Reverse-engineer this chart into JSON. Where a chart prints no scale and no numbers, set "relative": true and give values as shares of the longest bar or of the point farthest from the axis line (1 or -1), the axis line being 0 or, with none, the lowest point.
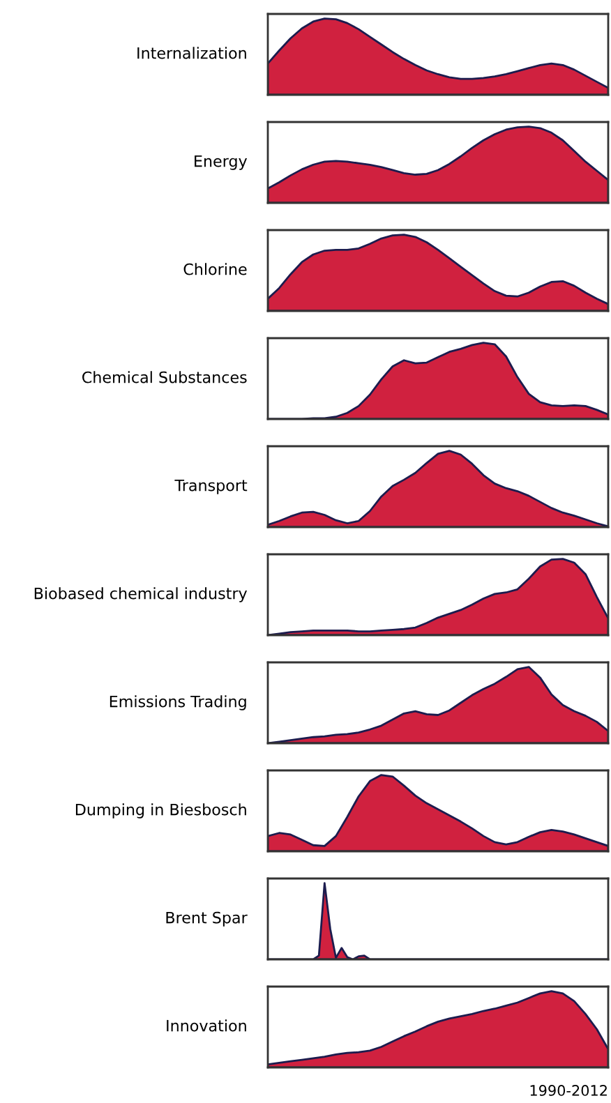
{
  "chart_data": [
    {
      "type": "area",
      "title": "Internalization",
      "relative": true,
      "color": "#d0213f",
      "categories": [
        null,
        null,
        null,
        null,
        null,
        null,
        null,
        null,
        null,
        null,
        null,
        null,
        null,
        null,
        null,
        null,
        null,
        null,
        null,
        null,
        null,
        null,
        null,
        null,
        null,
        null,
        null,
        null,
        null,
        null,
        null
      ],
      "values": [
        0.41,
        0.58,
        0.74,
        0.87,
        0.96,
        1.0,
        0.99,
        0.94,
        0.86,
        0.76,
        0.66,
        0.56,
        0.47,
        0.39,
        0.32,
        0.27,
        0.23,
        0.21,
        0.21,
        0.22,
        0.24,
        0.27,
        0.31,
        0.35,
        0.39,
        0.41,
        0.39,
        0.33,
        0.25,
        0.17,
        0.09
      ]
    },
    {
      "type": "area",
      "title": "Energy",
      "relative": true,
      "color": "#d0213f",
      "categories": [
        null,
        null,
        null,
        null,
        null,
        null,
        null,
        null,
        null,
        null,
        null,
        null,
        null,
        null,
        null,
        null,
        null,
        null,
        null,
        null,
        null,
        null,
        null,
        null,
        null,
        null,
        null,
        null,
        null,
        null,
        null
      ],
      "values": [
        0.19,
        0.27,
        0.36,
        0.44,
        0.5,
        0.54,
        0.55,
        0.54,
        0.52,
        0.5,
        0.47,
        0.43,
        0.39,
        0.37,
        0.38,
        0.43,
        0.51,
        0.61,
        0.72,
        0.82,
        0.9,
        0.96,
        0.99,
        1.0,
        0.98,
        0.92,
        0.82,
        0.68,
        0.54,
        0.42,
        0.3
      ]
    },
    {
      "type": "area",
      "title": "Chlorine",
      "relative": true,
      "color": "#d0213f",
      "categories": [
        null,
        null,
        null,
        null,
        null,
        null,
        null,
        null,
        null,
        null,
        null,
        null,
        null,
        null,
        null,
        null,
        null,
        null,
        null,
        null,
        null,
        null,
        null,
        null,
        null,
        null,
        null,
        null,
        null,
        null,
        null
      ],
      "values": [
        0.16,
        0.3,
        0.48,
        0.64,
        0.74,
        0.79,
        0.8,
        0.8,
        0.82,
        0.88,
        0.95,
        0.99,
        1.0,
        0.97,
        0.9,
        0.8,
        0.69,
        0.58,
        0.47,
        0.36,
        0.26,
        0.2,
        0.19,
        0.24,
        0.32,
        0.38,
        0.39,
        0.33,
        0.24,
        0.16,
        0.09
      ]
    },
    {
      "type": "area",
      "title": "Chemical Substances",
      "relative": true,
      "color": "#d0213f",
      "categories": [
        null,
        null,
        null,
        null,
        null,
        null,
        null,
        null,
        null,
        null,
        null,
        null,
        null,
        null,
        null,
        null,
        null,
        null,
        null,
        null,
        null,
        null,
        null,
        null,
        null,
        null,
        null,
        null,
        null,
        null,
        null
      ],
      "values": [
        0,
        0,
        0,
        0,
        0.01,
        0.01,
        0.03,
        0.08,
        0.17,
        0.32,
        0.52,
        0.69,
        0.77,
        0.73,
        0.74,
        0.81,
        0.88,
        0.92,
        0.97,
        1.0,
        0.98,
        0.82,
        0.55,
        0.33,
        0.22,
        0.18,
        0.17,
        0.18,
        0.17,
        0.12,
        0.06
      ]
    },
    {
      "type": "area",
      "title": "Transport",
      "relative": true,
      "color": "#d0213f",
      "categories": [
        null,
        null,
        null,
        null,
        null,
        null,
        null,
        null,
        null,
        null,
        null,
        null,
        null,
        null,
        null,
        null,
        null,
        null,
        null,
        null,
        null,
        null,
        null,
        null,
        null,
        null,
        null,
        null,
        null,
        null,
        null
      ],
      "values": [
        0.03,
        0.08,
        0.14,
        0.19,
        0.2,
        0.16,
        0.09,
        0.05,
        0.08,
        0.21,
        0.4,
        0.54,
        0.62,
        0.71,
        0.84,
        0.96,
        1.0,
        0.95,
        0.83,
        0.68,
        0.57,
        0.51,
        0.47,
        0.41,
        0.33,
        0.25,
        0.19,
        0.15,
        0.1,
        0.05,
        0.01
      ]
    },
    {
      "type": "area",
      "title": "Biobased chemical industry",
      "relative": true,
      "color": "#d0213f",
      "categories": [
        null,
        null,
        null,
        null,
        null,
        null,
        null,
        null,
        null,
        null,
        null,
        null,
        null,
        null,
        null,
        null,
        null,
        null,
        null,
        null,
        null,
        null,
        null,
        null,
        null,
        null,
        null,
        null,
        null,
        null,
        null
      ],
      "values": [
        0.0,
        0.02,
        0.04,
        0.05,
        0.06,
        0.06,
        0.06,
        0.06,
        0.05,
        0.05,
        0.06,
        0.07,
        0.08,
        0.1,
        0.16,
        0.23,
        0.28,
        0.33,
        0.4,
        0.48,
        0.54,
        0.56,
        0.6,
        0.74,
        0.9,
        0.99,
        1.0,
        0.95,
        0.8,
        0.5,
        0.22
      ]
    },
    {
      "type": "area",
      "title": "Emissions Trading",
      "relative": true,
      "color": "#d0213f",
      "categories": [
        null,
        null,
        null,
        null,
        null,
        null,
        null,
        null,
        null,
        null,
        null,
        null,
        null,
        null,
        null,
        null,
        null,
        null,
        null,
        null,
        null,
        null,
        null,
        null,
        null,
        null,
        null,
        null,
        null,
        null,
        null
      ],
      "values": [
        0,
        0.02,
        0.04,
        0.06,
        0.08,
        0.09,
        0.11,
        0.12,
        0.14,
        0.18,
        0.23,
        0.31,
        0.39,
        0.42,
        0.38,
        0.37,
        0.43,
        0.53,
        0.63,
        0.71,
        0.78,
        0.87,
        0.97,
        1.0,
        0.86,
        0.64,
        0.5,
        0.42,
        0.36,
        0.28,
        0.16
      ]
    },
    {
      "type": "area",
      "title": "Dumping in Biesbosch",
      "relative": true,
      "color": "#d0213f",
      "categories": [
        null,
        null,
        null,
        null,
        null,
        null,
        null,
        null,
        null,
        null,
        null,
        null,
        null,
        null,
        null,
        null,
        null,
        null,
        null,
        null,
        null,
        null,
        null,
        null,
        null,
        null,
        null,
        null,
        null,
        null,
        null
      ],
      "values": [
        0.2,
        0.24,
        0.22,
        0.15,
        0.08,
        0.07,
        0.2,
        0.45,
        0.72,
        0.92,
        1.0,
        0.98,
        0.86,
        0.73,
        0.63,
        0.55,
        0.47,
        0.39,
        0.3,
        0.2,
        0.12,
        0.09,
        0.12,
        0.19,
        0.25,
        0.28,
        0.26,
        0.22,
        0.17,
        0.12,
        0.07
      ]
    },
    {
      "type": "area",
      "title": "Brent Spar",
      "relative": true,
      "color": "#d0213f",
      "categories": [
        null,
        null,
        null,
        null,
        null,
        null,
        null,
        null,
        null,
        null,
        null,
        null,
        null,
        null,
        null,
        null,
        null,
        null,
        null,
        null,
        null,
        null,
        null,
        null,
        null,
        null,
        null,
        null,
        null,
        null,
        null,
        null,
        null,
        null,
        null,
        null,
        null,
        null,
        null,
        null,
        null,
        null,
        null,
        null,
        null,
        null,
        null,
        null,
        null,
        null,
        null,
        null,
        null,
        null,
        null,
        null,
        null,
        null,
        null,
        null,
        null
      ],
      "values": [
        0,
        0,
        0,
        0,
        0,
        0,
        0,
        0,
        0,
        0.05,
        1.0,
        0.4,
        0.02,
        0.15,
        0.03,
        0,
        0.04,
        0.05,
        0,
        0,
        0,
        0,
        0,
        0,
        0,
        0,
        0,
        0,
        0,
        0,
        0,
        0,
        0,
        0,
        0,
        0,
        0,
        0,
        0,
        0,
        0,
        0,
        0,
        0,
        0,
        0,
        0,
        0,
        0,
        0,
        0,
        0,
        0,
        0,
        0,
        0,
        0,
        0,
        0,
        0,
        0
      ]
    },
    {
      "type": "area",
      "title": "Innovation",
      "xlabel": "1990-2012",
      "relative": true,
      "color": "#d0213f",
      "categories": [
        null,
        null,
        null,
        null,
        null,
        null,
        null,
        null,
        null,
        null,
        null,
        null,
        null,
        null,
        null,
        null,
        null,
        null,
        null,
        null,
        null,
        null,
        null,
        null,
        null,
        null,
        null,
        null,
        null,
        null,
        null
      ],
      "values": [
        0.04,
        0.06,
        0.08,
        0.1,
        0.12,
        0.14,
        0.17,
        0.19,
        0.2,
        0.22,
        0.27,
        0.34,
        0.41,
        0.47,
        0.54,
        0.6,
        0.64,
        0.67,
        0.7,
        0.74,
        0.77,
        0.81,
        0.85,
        0.91,
        0.97,
        1.0,
        0.97,
        0.87,
        0.7,
        0.5,
        0.24
      ]
    }
  ]
}
